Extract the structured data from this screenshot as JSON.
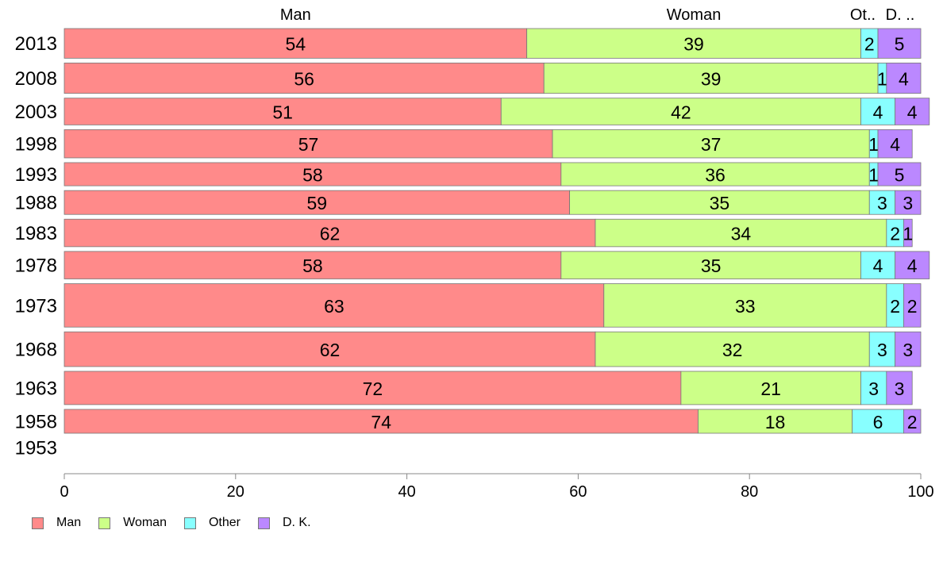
{
  "chart_data": {
    "type": "bar",
    "orientation": "horizontal-stacked-100",
    "categories": [
      "2013",
      "2008",
      "2003",
      "1998",
      "1993",
      "1988",
      "1983",
      "1978",
      "1973",
      "1968",
      "1963",
      "1958",
      "1953"
    ],
    "series": [
      {
        "name": "Man",
        "color": "#ff8a8a",
        "values": [
          54,
          56,
          51,
          57,
          58,
          59,
          62,
          58,
          63,
          62,
          72,
          74,
          null
        ]
      },
      {
        "name": "Woman",
        "color": "#ccff88",
        "values": [
          39,
          39,
          42,
          37,
          36,
          35,
          34,
          35,
          33,
          32,
          21,
          18,
          null
        ]
      },
      {
        "name": "Other",
        "color": "#88ffff",
        "values": [
          2,
          1,
          4,
          1,
          1,
          3,
          2,
          4,
          2,
          3,
          3,
          6,
          null
        ]
      },
      {
        "name": "D. K.",
        "color": "#bb88ff",
        "values": [
          5,
          4,
          4,
          4,
          5,
          3,
          1,
          4,
          2,
          3,
          3,
          2,
          null
        ]
      }
    ],
    "bar_weights": [
      41,
      42,
      37,
      39,
      32,
      33,
      38,
      38,
      60,
      48,
      46,
      33,
      0
    ],
    "column_headers": [
      "Man",
      "Woman",
      "Ot..",
      "D. .."
    ],
    "xlim": [
      0,
      100
    ],
    "xticks": [
      "0",
      "20",
      "40",
      "60",
      "80",
      "100"
    ],
    "legend_position": "bottom-left",
    "grid": false,
    "title": "",
    "xlabel": "",
    "ylabel": ""
  }
}
